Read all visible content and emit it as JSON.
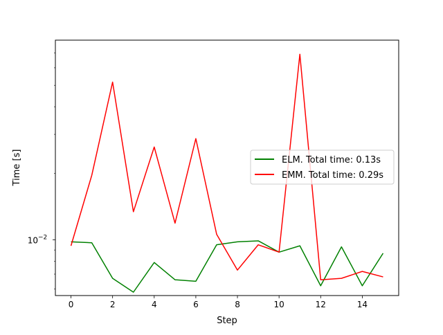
{
  "chart_data": {
    "type": "line",
    "title": "",
    "xlabel": "Step",
    "ylabel": "Time [s]",
    "xlim": [
      -0.75,
      15.75
    ],
    "ylim": [
      0.0056,
      0.08
    ],
    "yscale": "log",
    "grid": false,
    "legend_position": "center-right",
    "x_ticks": [
      0,
      2,
      4,
      6,
      8,
      10,
      12,
      14
    ],
    "x_tick_labels": [
      "0",
      "2",
      "4",
      "6",
      "8",
      "10",
      "12",
      "14"
    ],
    "y_major_ticks": [
      0.01
    ],
    "y_major_tick_labels": [
      "10^-2"
    ],
    "y_minor_ticks": [
      0.006,
      0.007,
      0.008,
      0.009,
      0.02,
      0.03,
      0.04,
      0.05,
      0.06,
      0.07
    ],
    "x": [
      0,
      1,
      2,
      3,
      4,
      5,
      6,
      7,
      8,
      9,
      10,
      11,
      12,
      13,
      14,
      15
    ],
    "series": [
      {
        "name": "ELM. Total time: 0.13s",
        "color": "#008000",
        "values": [
          0.0098,
          0.0097,
          0.0067,
          0.0058,
          0.0079,
          0.0066,
          0.0065,
          0.0095,
          0.0098,
          0.0099,
          0.0088,
          0.0094,
          0.0062,
          0.0093,
          0.0062,
          0.0087
        ]
      },
      {
        "name": "EMM. Total time: 0.29s",
        "color": "#ff0000",
        "values": [
          0.0094,
          0.0196,
          0.0517,
          0.0134,
          0.0263,
          0.0119,
          0.0287,
          0.0106,
          0.0073,
          0.0095,
          0.0088,
          0.0691,
          0.0066,
          0.0067,
          0.0072,
          0.0068
        ]
      }
    ]
  }
}
